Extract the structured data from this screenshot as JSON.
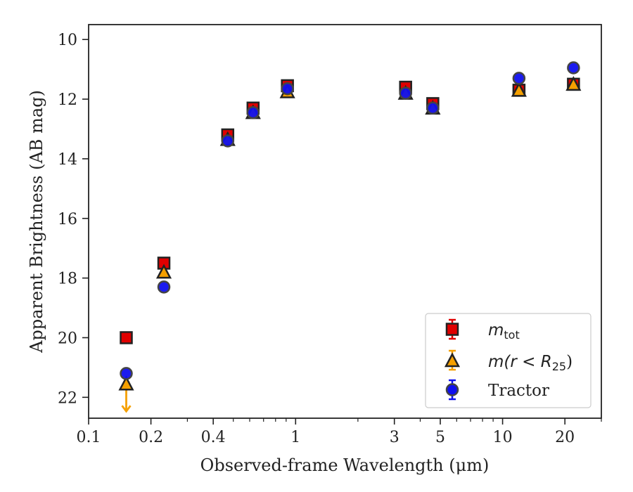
{
  "chart_data": {
    "type": "scatter",
    "title": "",
    "xlabel": "Observed-frame Wavelength (μm)",
    "ylabel": "Apparent Brightness (AB mag)",
    "xscale": "log",
    "xlim": [
      0.1,
      30
    ],
    "ylim": [
      22.7,
      9.5
    ],
    "y_inverted": true,
    "x_ticks": [
      0.1,
      0.2,
      0.4,
      1,
      3,
      5,
      10,
      20
    ],
    "x_tick_labels": [
      "0.1",
      "0.2",
      "0.4",
      "1",
      "3",
      "5",
      "10",
      "20"
    ],
    "y_ticks": [
      10,
      12,
      14,
      16,
      18,
      20,
      22
    ],
    "y_tick_labels": [
      "10",
      "12",
      "14",
      "16",
      "18",
      "20",
      "22"
    ],
    "grid": false,
    "legend_position": "bottom-right",
    "legend": {
      "mtot_main": "m",
      "mtot_sub": "tot",
      "mr_main": "m(r < R",
      "mr_sub": "25",
      "mr_close": ")",
      "tractor": "Tractor"
    },
    "series": [
      {
        "key": "mtot",
        "marker": "square",
        "color": "#e00000",
        "edge": "#222222",
        "points": [
          {
            "x": 0.152,
            "y": 20.0
          },
          {
            "x": 0.231,
            "y": 17.5
          },
          {
            "x": 0.47,
            "y": 13.2
          },
          {
            "x": 0.623,
            "y": 12.3
          },
          {
            "x": 0.913,
            "y": 11.55
          },
          {
            "x": 3.4,
            "y": 11.6
          },
          {
            "x": 4.6,
            "y": 12.15
          },
          {
            "x": 12.0,
            "y": 11.7
          },
          {
            "x": 22.0,
            "y": 11.5
          }
        ]
      },
      {
        "key": "mr",
        "marker": "triangle",
        "color": "#f5a000",
        "edge": "#222222",
        "upper_limit_index": 0,
        "points": [
          {
            "x": 0.152,
            "y": 21.55
          },
          {
            "x": 0.231,
            "y": 17.8
          },
          {
            "x": 0.47,
            "y": 13.35
          },
          {
            "x": 0.623,
            "y": 12.45
          },
          {
            "x": 0.913,
            "y": 11.75
          },
          {
            "x": 3.4,
            "y": 11.8
          },
          {
            "x": 4.6,
            "y": 12.3
          },
          {
            "x": 12.0,
            "y": 11.7
          },
          {
            "x": 22.0,
            "y": 11.5
          }
        ]
      },
      {
        "key": "tractor",
        "marker": "circle",
        "color": "#1010ee",
        "edge": "#444444",
        "points": [
          {
            "x": 0.152,
            "y": 21.2
          },
          {
            "x": 0.231,
            "y": 18.3
          },
          {
            "x": 0.47,
            "y": 13.4
          },
          {
            "x": 0.623,
            "y": 12.45
          },
          {
            "x": 0.913,
            "y": 11.65
          },
          {
            "x": 3.4,
            "y": 11.8
          },
          {
            "x": 4.6,
            "y": 12.3
          },
          {
            "x": 12.0,
            "y": 11.3
          },
          {
            "x": 22.0,
            "y": 10.95
          }
        ]
      }
    ]
  }
}
